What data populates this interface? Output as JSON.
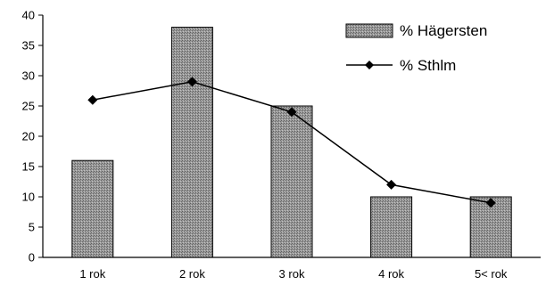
{
  "chart_data": {
    "type": "bar",
    "categories": [
      "1 rok",
      "2 rok",
      "3 rok",
      "4 rok",
      "5< rok"
    ],
    "series": [
      {
        "name": "% Hägersten",
        "type": "bar",
        "values": [
          16,
          38,
          25,
          10,
          10
        ],
        "color": "#8c8c8c"
      },
      {
        "name": "% Sthlm",
        "type": "line",
        "marker": "diamond",
        "values": [
          26,
          29,
          24,
          12,
          9
        ],
        "color": "#000000"
      }
    ],
    "yticks": [
      "0",
      "5",
      "10",
      "15",
      "20",
      "25",
      "30",
      "35",
      "40"
    ],
    "ylim": [
      0,
      40
    ],
    "grid": false,
    "legend": "top-right"
  }
}
